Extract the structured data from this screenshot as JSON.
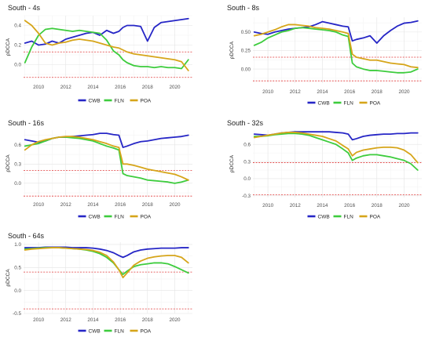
{
  "series_colors": {
    "CWB": "#2626c6",
    "FLN": "#3dcc3d",
    "POA": "#d6a51a",
    "critical": "#e03a3a"
  },
  "chart_data": [
    {
      "type": "line",
      "title": "South - 4s",
      "xlabel": "",
      "ylabel": "ρDCCA",
      "xlim": [
        2008.9,
        2021.3
      ],
      "ylim": [
        -0.14,
        0.5
      ],
      "xticks": [
        "2010",
        "2012",
        "2014",
        "2016",
        "2018",
        "2020"
      ],
      "yticks": [
        "0.0",
        "0.2",
        "0.4"
      ],
      "grid": true,
      "legend": "bottom",
      "reference_lines": [
        0.13,
        -0.13
      ],
      "x": [
        2009,
        2009.5,
        2010,
        2010.5,
        2011,
        2011.5,
        2012,
        2012.5,
        2013,
        2013.5,
        2014,
        2014.5,
        2015,
        2015.5,
        2015.9,
        2016.2,
        2016.5,
        2017,
        2017.5,
        2018,
        2018.5,
        2019,
        2019.5,
        2020,
        2020.5,
        2021
      ],
      "series": [
        {
          "name": "CWB",
          "values": [
            0.22,
            0.24,
            0.2,
            0.21,
            0.24,
            0.22,
            0.26,
            0.28,
            0.3,
            0.32,
            0.33,
            0.3,
            0.35,
            0.32,
            0.34,
            0.38,
            0.4,
            0.4,
            0.39,
            0.24,
            0.38,
            0.43,
            0.44,
            0.45,
            0.46,
            0.47
          ]
        },
        {
          "name": "FLN",
          "values": [
            0.02,
            0.18,
            0.3,
            0.36,
            0.37,
            0.36,
            0.35,
            0.34,
            0.35,
            0.34,
            0.33,
            0.32,
            0.25,
            0.14,
            0.1,
            0.05,
            0.02,
            -0.01,
            -0.02,
            -0.02,
            -0.03,
            -0.02,
            -0.03,
            -0.03,
            -0.04,
            0.05
          ]
        },
        {
          "name": "POA",
          "values": [
            0.45,
            0.4,
            0.32,
            0.22,
            0.2,
            0.22,
            0.23,
            0.25,
            0.26,
            0.25,
            0.24,
            0.22,
            0.2,
            0.18,
            0.17,
            0.15,
            0.13,
            0.11,
            0.1,
            0.09,
            0.08,
            0.07,
            0.06,
            0.05,
            0.03,
            -0.06
          ]
        }
      ]
    },
    {
      "type": "line",
      "title": "South - 8s",
      "xlabel": "",
      "ylabel": "ρDCCA",
      "xlim": [
        2008.9,
        2021.3
      ],
      "ylim": [
        -0.19,
        0.7
      ],
      "xticks": [
        "2010",
        "2012",
        "2014",
        "2016",
        "2018",
        "2020"
      ],
      "yticks": [
        "0.00",
        "0.25",
        "0.50"
      ],
      "grid": true,
      "legend": "bottom",
      "reference_lines": [
        0.16,
        -0.16
      ],
      "x": [
        2009,
        2009.5,
        2010,
        2010.5,
        2011,
        2011.5,
        2012,
        2012.5,
        2013,
        2013.5,
        2014,
        2014.5,
        2015,
        2015.5,
        2015.9,
        2016.2,
        2016.5,
        2017,
        2017.5,
        2018,
        2018.5,
        2019,
        2019.5,
        2020,
        2020.5,
        2021
      ],
      "series": [
        {
          "name": "CWB",
          "values": [
            0.5,
            0.48,
            0.47,
            0.5,
            0.52,
            0.54,
            0.55,
            0.56,
            0.57,
            0.6,
            0.64,
            0.62,
            0.6,
            0.58,
            0.57,
            0.38,
            0.4,
            0.42,
            0.45,
            0.35,
            0.45,
            0.52,
            0.58,
            0.62,
            0.63,
            0.65
          ]
        },
        {
          "name": "FLN",
          "values": [
            0.32,
            0.36,
            0.42,
            0.46,
            0.5,
            0.52,
            0.55,
            0.56,
            0.55,
            0.54,
            0.53,
            0.52,
            0.5,
            0.46,
            0.44,
            0.08,
            0.03,
            0.0,
            -0.02,
            -0.02,
            -0.03,
            -0.04,
            -0.05,
            -0.05,
            -0.04,
            0.0
          ]
        },
        {
          "name": "POA",
          "values": [
            0.45,
            0.47,
            0.5,
            0.53,
            0.57,
            0.6,
            0.6,
            0.59,
            0.58,
            0.56,
            0.55,
            0.54,
            0.52,
            0.5,
            0.48,
            0.2,
            0.16,
            0.14,
            0.12,
            0.12,
            0.1,
            0.08,
            0.07,
            0.06,
            0.03,
            0.02
          ]
        }
      ]
    },
    {
      "type": "line",
      "title": "South - 16s",
      "xlabel": "",
      "ylabel": "ρDCCA",
      "xlim": [
        2008.9,
        2021.3
      ],
      "ylim": [
        -0.21,
        0.83
      ],
      "xticks": [
        "2010",
        "2012",
        "2014",
        "2016",
        "2018",
        "2020"
      ],
      "yticks": [
        "0.0",
        "0.3",
        "0.6"
      ],
      "grid": true,
      "legend": "bottom",
      "reference_lines": [
        0.2,
        -0.2
      ],
      "x": [
        2009,
        2009.5,
        2010,
        2010.5,
        2011,
        2011.5,
        2012,
        2012.5,
        2013,
        2013.5,
        2014,
        2014.5,
        2015,
        2015.5,
        2015.9,
        2016.2,
        2016.5,
        2017,
        2017.5,
        2018,
        2018.5,
        2019,
        2019.5,
        2020,
        2020.5,
        2021
      ],
      "series": [
        {
          "name": "CWB",
          "values": [
            0.68,
            0.66,
            0.64,
            0.66,
            0.7,
            0.72,
            0.72,
            0.73,
            0.74,
            0.75,
            0.76,
            0.78,
            0.78,
            0.76,
            0.75,
            0.56,
            0.58,
            0.62,
            0.65,
            0.66,
            0.68,
            0.7,
            0.71,
            0.72,
            0.73,
            0.75
          ]
        },
        {
          "name": "FLN",
          "values": [
            0.58,
            0.6,
            0.62,
            0.66,
            0.7,
            0.72,
            0.72,
            0.71,
            0.7,
            0.68,
            0.66,
            0.62,
            0.58,
            0.55,
            0.52,
            0.15,
            0.12,
            0.1,
            0.08,
            0.05,
            0.04,
            0.03,
            0.02,
            0.0,
            0.02,
            0.05
          ]
        },
        {
          "name": "POA",
          "values": [
            0.52,
            0.6,
            0.65,
            0.68,
            0.7,
            0.72,
            0.73,
            0.73,
            0.72,
            0.7,
            0.68,
            0.65,
            0.62,
            0.58,
            0.56,
            0.3,
            0.3,
            0.28,
            0.25,
            0.22,
            0.2,
            0.18,
            0.16,
            0.14,
            0.1,
            0.05
          ]
        }
      ]
    },
    {
      "type": "line",
      "title": "South - 32s",
      "xlabel": "",
      "ylabel": "ρDCCA",
      "xlim": [
        2008.9,
        2021.3
      ],
      "ylim": [
        -0.33,
        0.85
      ],
      "xticks": [
        "2010",
        "2012",
        "2014",
        "2016",
        "2018",
        "2020"
      ],
      "yticks": [
        "-0.3",
        "0.0",
        "0.3",
        "0.6"
      ],
      "grid": true,
      "legend": "bottom",
      "reference_lines": [
        0.28,
        -0.28
      ],
      "x": [
        2009,
        2009.5,
        2010,
        2010.5,
        2011,
        2011.5,
        2012,
        2012.5,
        2013,
        2013.5,
        2014,
        2014.5,
        2015,
        2015.5,
        2015.9,
        2016.2,
        2016.5,
        2017,
        2017.5,
        2018,
        2018.5,
        2019,
        2019.5,
        2020,
        2020.5,
        2021
      ],
      "series": [
        {
          "name": "CWB",
          "values": [
            0.78,
            0.77,
            0.76,
            0.78,
            0.8,
            0.81,
            0.82,
            0.82,
            0.82,
            0.82,
            0.82,
            0.82,
            0.81,
            0.8,
            0.78,
            0.68,
            0.7,
            0.74,
            0.76,
            0.77,
            0.78,
            0.78,
            0.79,
            0.79,
            0.8,
            0.8
          ]
        },
        {
          "name": "FLN",
          "values": [
            0.74,
            0.74,
            0.75,
            0.77,
            0.78,
            0.79,
            0.79,
            0.78,
            0.76,
            0.72,
            0.68,
            0.64,
            0.6,
            0.52,
            0.45,
            0.32,
            0.36,
            0.4,
            0.42,
            0.42,
            0.4,
            0.38,
            0.35,
            0.32,
            0.26,
            0.15
          ]
        },
        {
          "name": "POA",
          "values": [
            0.72,
            0.74,
            0.76,
            0.78,
            0.8,
            0.81,
            0.81,
            0.8,
            0.78,
            0.76,
            0.74,
            0.7,
            0.66,
            0.58,
            0.52,
            0.4,
            0.46,
            0.5,
            0.52,
            0.54,
            0.55,
            0.55,
            0.54,
            0.5,
            0.42,
            0.28
          ]
        }
      ]
    },
    {
      "type": "line",
      "title": "South - 64s",
      "xlabel": "",
      "ylabel": "ρDCCA",
      "xlim": [
        2008.9,
        2021.3
      ],
      "ylim": [
        -0.5,
        1.05
      ],
      "xticks": [
        "2010",
        "2012",
        "2014",
        "2016",
        "2018",
        "2020"
      ],
      "yticks": [
        "-0.5",
        "0.0",
        "0.5",
        "1.0"
      ],
      "grid": true,
      "legend": "bottom",
      "reference_lines": [
        0.4,
        -0.4
      ],
      "x": [
        2009,
        2009.5,
        2010,
        2010.5,
        2011,
        2011.5,
        2012,
        2012.5,
        2013,
        2013.5,
        2014,
        2014.5,
        2015,
        2015.5,
        2015.9,
        2016.2,
        2016.5,
        2017,
        2017.5,
        2018,
        2018.5,
        2019,
        2019.5,
        2020,
        2020.5,
        2021
      ],
      "series": [
        {
          "name": "CWB",
          "values": [
            0.93,
            0.93,
            0.93,
            0.94,
            0.94,
            0.94,
            0.94,
            0.93,
            0.93,
            0.93,
            0.92,
            0.9,
            0.87,
            0.82,
            0.76,
            0.72,
            0.76,
            0.84,
            0.88,
            0.9,
            0.91,
            0.92,
            0.92,
            0.92,
            0.93,
            0.93
          ]
        },
        {
          "name": "FLN",
          "values": [
            0.9,
            0.91,
            0.92,
            0.93,
            0.93,
            0.93,
            0.92,
            0.91,
            0.9,
            0.88,
            0.85,
            0.8,
            0.72,
            0.6,
            0.45,
            0.35,
            0.42,
            0.52,
            0.56,
            0.58,
            0.6,
            0.6,
            0.58,
            0.52,
            0.45,
            0.38
          ]
        },
        {
          "name": "POA",
          "values": [
            0.88,
            0.9,
            0.91,
            0.92,
            0.93,
            0.93,
            0.92,
            0.91,
            0.9,
            0.89,
            0.87,
            0.83,
            0.76,
            0.62,
            0.45,
            0.28,
            0.38,
            0.55,
            0.64,
            0.7,
            0.73,
            0.75,
            0.76,
            0.76,
            0.72,
            0.6
          ]
        }
      ]
    }
  ]
}
